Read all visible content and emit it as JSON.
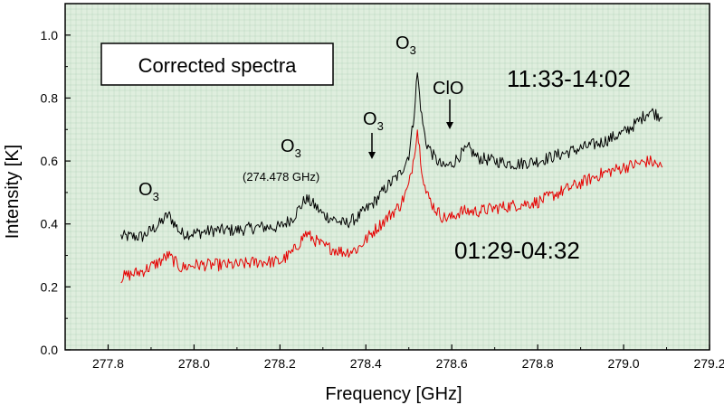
{
  "chart_data": {
    "type": "line",
    "xlabel": "Frequency [GHz]",
    "ylabel": "Intensity [K]",
    "xlim": [
      277.7,
      279.2
    ],
    "ylim": [
      0.0,
      1.1
    ],
    "x_ticks": [
      277.8,
      278.0,
      278.2,
      278.4,
      278.6,
      278.8,
      279.0,
      279.2
    ],
    "y_ticks": [
      0.0,
      0.2,
      0.4,
      0.6,
      0.8,
      1.0
    ],
    "x_tick_labels": [
      "277.8",
      "278.0",
      "278.2",
      "278.4",
      "278.6",
      "278.8",
      "279.0",
      "279.2"
    ],
    "y_tick_labels": [
      "0.0",
      "0.2",
      "0.4",
      "0.6",
      "0.8",
      "1.0"
    ],
    "grid": true,
    "colors": {
      "background": "#dfeede",
      "grid": "#8fbfa0",
      "series_day": "#000000",
      "series_night": "#e60000"
    },
    "series": [
      {
        "name": "11:33-14:02",
        "color": "#000000",
        "x": [
          277.83,
          277.88,
          277.92,
          277.94,
          277.97,
          278.0,
          278.05,
          278.1,
          278.15,
          278.2,
          278.23,
          278.26,
          278.28,
          278.3,
          278.35,
          278.38,
          278.42,
          278.45,
          278.48,
          278.5,
          278.51,
          278.52,
          278.53,
          278.54,
          278.56,
          278.58,
          278.6,
          278.62,
          278.64,
          278.66,
          278.7,
          278.75,
          278.8,
          278.85,
          278.9,
          278.95,
          279.0,
          279.03,
          279.06,
          279.09
        ],
        "y": [
          0.36,
          0.36,
          0.4,
          0.43,
          0.37,
          0.37,
          0.38,
          0.38,
          0.39,
          0.39,
          0.42,
          0.48,
          0.46,
          0.43,
          0.4,
          0.42,
          0.47,
          0.52,
          0.56,
          0.62,
          0.72,
          0.88,
          0.74,
          0.66,
          0.61,
          0.58,
          0.59,
          0.62,
          0.64,
          0.61,
          0.6,
          0.59,
          0.6,
          0.62,
          0.64,
          0.66,
          0.69,
          0.72,
          0.76,
          0.74
        ]
      },
      {
        "name": "01:29-04:32",
        "color": "#e60000",
        "x": [
          277.83,
          277.88,
          277.92,
          277.94,
          277.97,
          278.0,
          278.05,
          278.1,
          278.15,
          278.2,
          278.23,
          278.26,
          278.28,
          278.3,
          278.35,
          278.38,
          278.42,
          278.45,
          278.48,
          278.5,
          278.51,
          278.52,
          278.53,
          278.54,
          278.56,
          278.58,
          278.6,
          278.62,
          278.64,
          278.66,
          278.7,
          278.75,
          278.8,
          278.85,
          278.9,
          278.95,
          279.0,
          279.03,
          279.06,
          279.09
        ],
        "y": [
          0.23,
          0.25,
          0.28,
          0.3,
          0.26,
          0.27,
          0.27,
          0.27,
          0.28,
          0.28,
          0.31,
          0.37,
          0.35,
          0.33,
          0.31,
          0.32,
          0.38,
          0.42,
          0.46,
          0.52,
          0.6,
          0.7,
          0.58,
          0.5,
          0.45,
          0.42,
          0.42,
          0.44,
          0.44,
          0.44,
          0.45,
          0.46,
          0.47,
          0.5,
          0.53,
          0.56,
          0.58,
          0.59,
          0.6,
          0.58
        ]
      }
    ],
    "annotations": {
      "box_label": "Corrected spectra",
      "legend_day": "11:33-14:02",
      "legend_night": "01:29-04:32",
      "o3_base": "O",
      "o3_sub": "3",
      "clo": "ClO",
      "freq_note": "(274.478 GHz)"
    }
  }
}
